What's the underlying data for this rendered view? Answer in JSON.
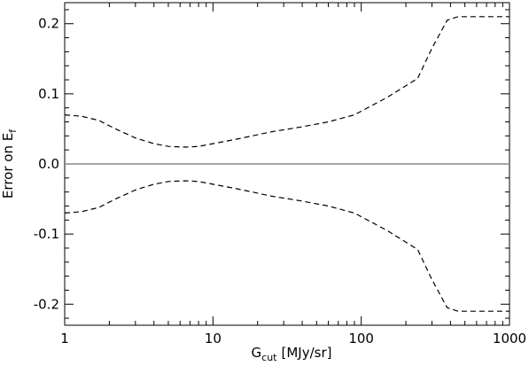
{
  "chart_data": {
    "type": "line",
    "title": "",
    "xlabel": "G",
    "xlabel_subscript": "cut",
    "xlabel_unit": "[MJy/sr]",
    "ylabel": "Error on E",
    "ylabel_subscript": "f",
    "x_scale": "log",
    "xlim": [
      1,
      1000
    ],
    "ylim": [
      -0.23,
      0.23
    ],
    "grid": false,
    "legend": "none",
    "x_ticks": [
      {
        "value": 1,
        "label": "1"
      },
      {
        "value": 10,
        "label": "10"
      },
      {
        "value": 100,
        "label": "100"
      },
      {
        "value": 1000,
        "label": "1000"
      }
    ],
    "y_ticks": [
      {
        "value": 0.2,
        "label": "0.2"
      },
      {
        "value": 0.1,
        "label": "0.1"
      },
      {
        "value": 0.0,
        "label": "0.0"
      },
      {
        "value": -0.1,
        "label": "-0.1"
      },
      {
        "value": -0.2,
        "label": "-0.2"
      }
    ],
    "series": [
      {
        "style": "dashed",
        "color": "#000000",
        "x": [
          1,
          1.3,
          1.7,
          2.2,
          3,
          4,
          5,
          6.5,
          8,
          10,
          15,
          25,
          40,
          60,
          90,
          150,
          240,
          300,
          380,
          450,
          600,
          1000
        ],
        "y": [
          0.07,
          0.068,
          0.062,
          0.05,
          0.037,
          0.029,
          0.025,
          0.024,
          0.025,
          0.029,
          0.036,
          0.046,
          0.053,
          0.06,
          0.07,
          0.095,
          0.122,
          0.165,
          0.205,
          0.21,
          0.21,
          0.21
        ]
      },
      {
        "style": "dashed",
        "color": "#000000",
        "x": [
          1,
          1.3,
          1.7,
          2.2,
          3,
          4,
          5,
          6.5,
          8,
          10,
          15,
          25,
          40,
          60,
          90,
          150,
          240,
          300,
          380,
          450,
          600,
          1000
        ],
        "y": [
          -0.07,
          -0.068,
          -0.062,
          -0.05,
          -0.037,
          -0.029,
          -0.025,
          -0.024,
          -0.025,
          -0.029,
          -0.036,
          -0.046,
          -0.053,
          -0.06,
          -0.07,
          -0.095,
          -0.122,
          -0.165,
          -0.205,
          -0.21,
          -0.21,
          -0.21
        ]
      },
      {
        "style": "solid",
        "color": "#888888",
        "x": [
          1,
          1000
        ],
        "y": [
          0,
          0
        ]
      }
    ]
  }
}
